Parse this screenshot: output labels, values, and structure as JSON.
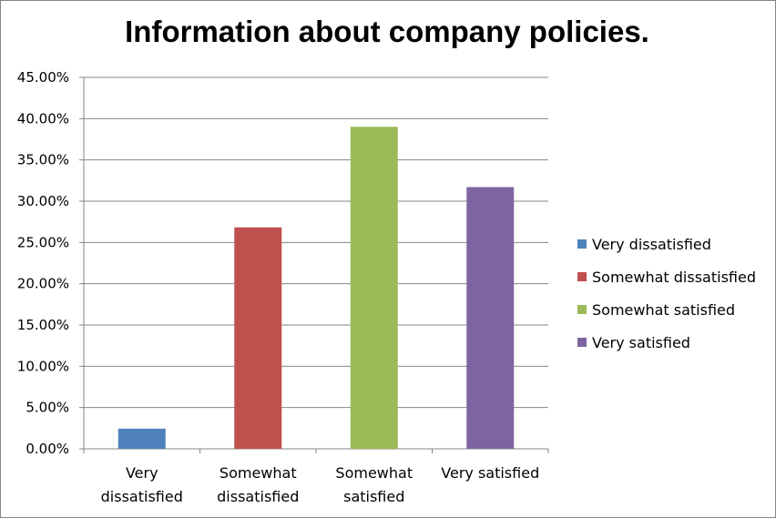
{
  "chart_data": {
    "type": "bar",
    "title": "Information about company policies.",
    "categories": [
      "Very dissatisfied",
      "Somewhat dissatisfied",
      "Somewhat satisfied",
      "Very satisfied"
    ],
    "category_tick_lines": [
      [
        "Very",
        "dissatisfied"
      ],
      [
        "Somewhat",
        "dissatisfied"
      ],
      [
        "Somewhat",
        "satisfied"
      ],
      [
        "Very satisfied"
      ]
    ],
    "values": [
      2.44,
      26.83,
      39.02,
      31.71
    ],
    "ylim": [
      0,
      45
    ],
    "yticks": [
      "0.00%",
      "5.00%",
      "10.00%",
      "15.00%",
      "20.00%",
      "25.00%",
      "30.00%",
      "35.00%",
      "40.00%",
      "45.00%"
    ],
    "grid": true,
    "legend_position": "right",
    "colors": [
      "#4F81BD",
      "#C0504D",
      "#9BBB59",
      "#8064A2"
    ],
    "legend": [
      "Very dissatisfied",
      "Somewhat dissatisfied",
      "Somewhat satisfied",
      "Very satisfied"
    ]
  }
}
